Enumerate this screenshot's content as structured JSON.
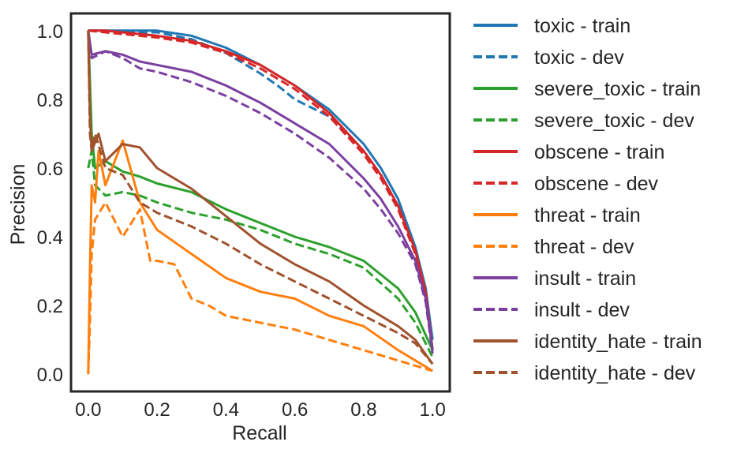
{
  "chart_data": {
    "type": "line",
    "title": "",
    "xlabel": "Recall",
    "ylabel": "Precision",
    "xlim": [
      -0.05,
      1.05
    ],
    "ylim": [
      -0.05,
      1.05
    ],
    "xticks": [
      0.0,
      0.2,
      0.4,
      0.6,
      0.8,
      1.0
    ],
    "yticks": [
      0.0,
      0.2,
      0.4,
      0.6,
      0.8,
      1.0
    ],
    "xtick_labels": [
      "0.0",
      "0.2",
      "0.4",
      "0.6",
      "0.8",
      "1.0"
    ],
    "ytick_labels": [
      "0.0",
      "0.2",
      "0.4",
      "0.6",
      "0.8",
      "1.0"
    ],
    "grid": false,
    "legend_position": "outside-right",
    "series": [
      {
        "name": "toxic - train",
        "color": "#1f77b4",
        "dash": "solid",
        "x": [
          0.0,
          0.05,
          0.1,
          0.2,
          0.3,
          0.4,
          0.5,
          0.6,
          0.7,
          0.8,
          0.85,
          0.9,
          0.95,
          0.98,
          1.0
        ],
        "y": [
          1.0,
          1.0,
          1.0,
          1.0,
          0.985,
          0.95,
          0.9,
          0.84,
          0.77,
          0.67,
          0.6,
          0.51,
          0.37,
          0.25,
          0.1
        ]
      },
      {
        "name": "toxic - dev",
        "color": "#1f77b4",
        "dash": "dashed",
        "x": [
          0.0,
          0.05,
          0.1,
          0.2,
          0.3,
          0.4,
          0.5,
          0.55,
          0.6,
          0.7,
          0.8,
          0.85,
          0.9,
          0.95,
          0.98,
          1.0
        ],
        "y": [
          1.0,
          1.0,
          0.995,
          0.995,
          0.975,
          0.935,
          0.875,
          0.84,
          0.8,
          0.75,
          0.65,
          0.58,
          0.49,
          0.36,
          0.24,
          0.1
        ]
      },
      {
        "name": "severe_toxic - train",
        "color": "#2ca02c",
        "dash": "solid",
        "x": [
          0.0,
          0.01,
          0.02,
          0.05,
          0.1,
          0.15,
          0.2,
          0.3,
          0.4,
          0.5,
          0.6,
          0.7,
          0.8,
          0.9,
          0.95,
          1.0
        ],
        "y": [
          1.0,
          0.7,
          0.6,
          0.62,
          0.59,
          0.575,
          0.555,
          0.53,
          0.48,
          0.44,
          0.4,
          0.37,
          0.33,
          0.25,
          0.18,
          0.07
        ]
      },
      {
        "name": "severe_toxic - dev",
        "color": "#2ca02c",
        "dash": "dashed",
        "x": [
          0.0,
          0.01,
          0.02,
          0.05,
          0.1,
          0.15,
          0.2,
          0.3,
          0.4,
          0.5,
          0.6,
          0.7,
          0.8,
          0.9,
          0.95,
          1.0
        ],
        "y": [
          0.6,
          0.65,
          0.55,
          0.52,
          0.53,
          0.52,
          0.5,
          0.47,
          0.45,
          0.42,
          0.38,
          0.35,
          0.31,
          0.22,
          0.15,
          0.05
        ]
      },
      {
        "name": "obscene - train",
        "color": "#d62728",
        "dash": "solid",
        "x": [
          0.0,
          0.05,
          0.1,
          0.2,
          0.3,
          0.4,
          0.5,
          0.6,
          0.7,
          0.8,
          0.85,
          0.9,
          0.95,
          0.98,
          1.0
        ],
        "y": [
          1.0,
          1.0,
          0.995,
          0.985,
          0.97,
          0.94,
          0.9,
          0.84,
          0.76,
          0.65,
          0.58,
          0.49,
          0.36,
          0.24,
          0.07
        ]
      },
      {
        "name": "obscene - dev",
        "color": "#d62728",
        "dash": "dashed",
        "x": [
          0.0,
          0.05,
          0.1,
          0.2,
          0.3,
          0.4,
          0.5,
          0.6,
          0.7,
          0.8,
          0.85,
          0.9,
          0.95,
          0.98,
          1.0
        ],
        "y": [
          1.0,
          0.995,
          0.99,
          0.98,
          0.965,
          0.935,
          0.89,
          0.83,
          0.75,
          0.64,
          0.57,
          0.48,
          0.35,
          0.23,
          0.07
        ]
      },
      {
        "name": "threat - train",
        "color": "#ff7f0e",
        "dash": "solid",
        "x": [
          0.0,
          0.005,
          0.01,
          0.02,
          0.03,
          0.05,
          0.1,
          0.15,
          0.2,
          0.3,
          0.4,
          0.5,
          0.6,
          0.7,
          0.8,
          0.9,
          0.95,
          1.0
        ],
        "y": [
          0.0,
          0.3,
          0.55,
          0.5,
          0.65,
          0.55,
          0.68,
          0.5,
          0.42,
          0.35,
          0.28,
          0.24,
          0.22,
          0.17,
          0.14,
          0.07,
          0.04,
          0.01
        ]
      },
      {
        "name": "threat - dev",
        "color": "#ff7f0e",
        "dash": "dashed",
        "x": [
          0.0,
          0.005,
          0.01,
          0.02,
          0.05,
          0.1,
          0.15,
          0.18,
          0.2,
          0.25,
          0.3,
          0.35,
          0.4,
          0.5,
          0.6,
          0.7,
          0.8,
          0.9,
          1.0
        ],
        "y": [
          0.0,
          0.15,
          0.35,
          0.45,
          0.5,
          0.4,
          0.48,
          0.33,
          0.33,
          0.32,
          0.22,
          0.2,
          0.17,
          0.15,
          0.13,
          0.1,
          0.07,
          0.04,
          0.01
        ]
      },
      {
        "name": "insult - train",
        "color": "#7b3fa0",
        "dash": "solid",
        "x": [
          0.0,
          0.01,
          0.05,
          0.1,
          0.15,
          0.2,
          0.3,
          0.4,
          0.5,
          0.6,
          0.7,
          0.8,
          0.85,
          0.9,
          0.95,
          0.98,
          1.0
        ],
        "y": [
          1.0,
          0.93,
          0.94,
          0.93,
          0.91,
          0.9,
          0.88,
          0.84,
          0.79,
          0.73,
          0.67,
          0.57,
          0.51,
          0.43,
          0.33,
          0.22,
          0.07
        ]
      },
      {
        "name": "insult - dev",
        "color": "#7b3fa0",
        "dash": "dashed",
        "x": [
          0.0,
          0.01,
          0.05,
          0.1,
          0.15,
          0.2,
          0.3,
          0.4,
          0.5,
          0.6,
          0.7,
          0.8,
          0.85,
          0.9,
          0.95,
          0.98,
          1.0
        ],
        "y": [
          1.0,
          0.92,
          0.94,
          0.92,
          0.89,
          0.88,
          0.85,
          0.81,
          0.76,
          0.7,
          0.63,
          0.54,
          0.48,
          0.41,
          0.32,
          0.21,
          0.06
        ]
      },
      {
        "name": "identity_hate - train",
        "color": "#a0522d",
        "dash": "solid",
        "x": [
          0.0,
          0.005,
          0.01,
          0.03,
          0.05,
          0.1,
          0.15,
          0.2,
          0.3,
          0.4,
          0.5,
          0.6,
          0.7,
          0.8,
          0.9,
          0.95,
          1.0
        ],
        "y": [
          1.0,
          0.75,
          0.65,
          0.7,
          0.62,
          0.67,
          0.66,
          0.6,
          0.54,
          0.46,
          0.38,
          0.32,
          0.27,
          0.2,
          0.14,
          0.1,
          0.03
        ]
      },
      {
        "name": "identity_hate - dev",
        "color": "#a0522d",
        "dash": "dashed",
        "x": [
          0.0,
          0.005,
          0.01,
          0.02,
          0.05,
          0.1,
          0.15,
          0.2,
          0.3,
          0.4,
          0.5,
          0.6,
          0.7,
          0.8,
          0.9,
          0.95,
          1.0
        ],
        "y": [
          1.0,
          0.7,
          0.65,
          0.7,
          0.6,
          0.58,
          0.5,
          0.47,
          0.43,
          0.38,
          0.32,
          0.27,
          0.22,
          0.17,
          0.12,
          0.09,
          0.03
        ]
      }
    ]
  }
}
